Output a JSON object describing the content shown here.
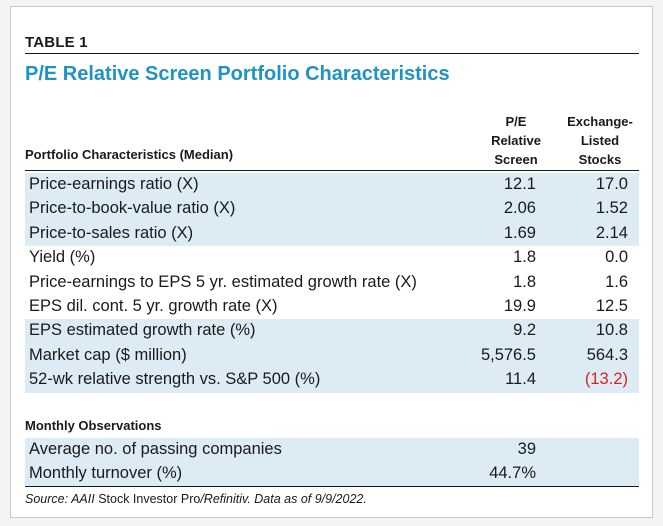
{
  "table_label": "TABLE 1",
  "title": "P/E Relative Screen Portfolio Characteristics",
  "header": {
    "left": "Portfolio Characteristics (Median)",
    "col1": [
      "P/E",
      "Relative",
      "Screen"
    ],
    "col2": [
      "Exchange-",
      "Listed",
      "Stocks"
    ]
  },
  "rows": [
    {
      "label": "Price-earnings ratio (X)",
      "v1": "12.1",
      "v2": "17.0",
      "shade": true
    },
    {
      "label": "Price-to-book-value ratio (X)",
      "v1": "2.06",
      "v2": "1.52",
      "shade": true
    },
    {
      "label": "Price-to-sales ratio (X)",
      "v1": "1.69",
      "v2": "2.14",
      "shade": true
    },
    {
      "label": "Yield (%)",
      "v1": "1.8",
      "v2": "0.0",
      "shade": false
    },
    {
      "label": "Price-earnings to EPS 5 yr. estimated growth rate (X)",
      "v1": "1.8",
      "v2": "1.6",
      "shade": false
    },
    {
      "label": "EPS dil. cont. 5 yr. growth rate (X)",
      "v1": "19.9",
      "v2": "12.5",
      "shade": false
    },
    {
      "label": "EPS estimated growth rate (%)",
      "v1": "9.2",
      "v2": "10.8",
      "shade": true
    },
    {
      "label": "Market cap ($ million)",
      "v1": "5,576.5",
      "v2": "564.3",
      "shade": true
    },
    {
      "label": "52-wk relative strength vs. S&P 500 (%)",
      "v1": "11.4",
      "v2": "(13.2)",
      "shade": true,
      "v2_negative": true
    }
  ],
  "monthly": {
    "header": "Monthly Observations",
    "rows": [
      {
        "label": "Average no. of passing companies",
        "v1": "39",
        "shade": true
      },
      {
        "label": "Monthly turnover (%)",
        "v1": "44.7%",
        "shade": true
      }
    ]
  },
  "source": {
    "prefix": "Source: AAII ",
    "product": "Stock Investor Pro",
    "suffix": "/Refinitiv. Data as of 9/9/2022."
  },
  "colors": {
    "title": "#1f93c4",
    "shade": "#dcebf4",
    "negative": "#d2241f"
  }
}
